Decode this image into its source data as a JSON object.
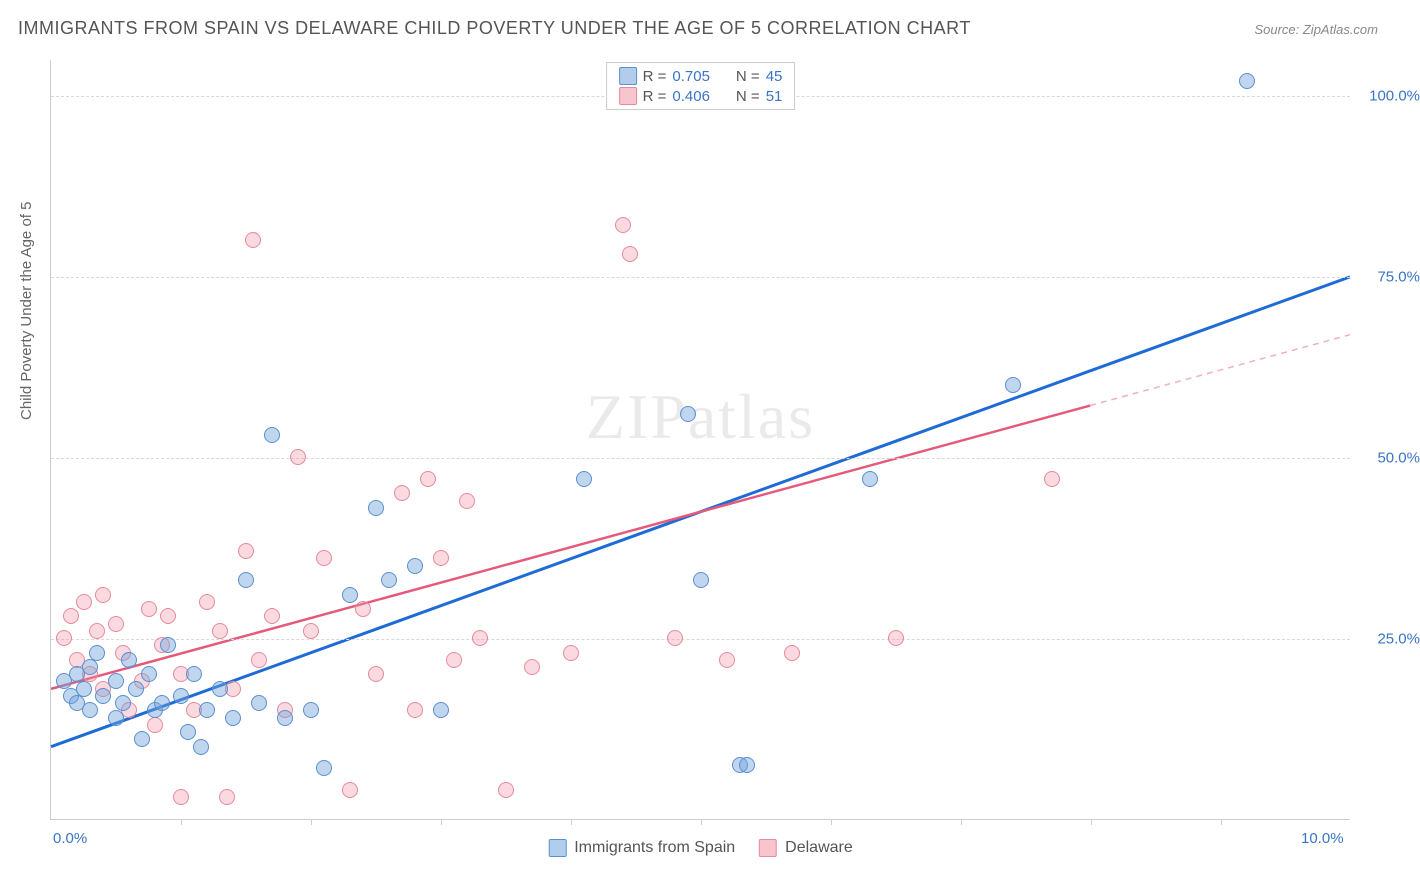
{
  "title": "IMMIGRANTS FROM SPAIN VS DELAWARE CHILD POVERTY UNDER THE AGE OF 5 CORRELATION CHART",
  "source_label": "Source: ",
  "source_value": "ZipAtlas.com",
  "watermark": "ZIPatlas",
  "y_axis_label": "Child Poverty Under the Age of 5",
  "chart": {
    "type": "scatter",
    "xlim": [
      0,
      10
    ],
    "ylim": [
      0,
      105
    ],
    "background_color": "#ffffff",
    "grid_color": "#d8d8d8",
    "y_ticks": [
      {
        "value": 25,
        "label": "25.0%"
      },
      {
        "value": 50,
        "label": "50.0%"
      },
      {
        "value": 75,
        "label": "75.0%"
      },
      {
        "value": 100,
        "label": "100.0%"
      }
    ],
    "x_ticks": [
      1,
      2,
      3,
      4,
      5,
      6,
      7,
      8,
      9
    ],
    "x_tick_labels": [
      {
        "value": 0,
        "label": "0.0%"
      },
      {
        "value": 10,
        "label": "10.0%"
      }
    ],
    "series": [
      {
        "name": "Immigrants from Spain",
        "color_fill": "rgba(115,163,219,0.45)",
        "color_stroke": "#5a8fd0",
        "line_color": "#1e6bd6",
        "line_width": 3,
        "marker_size": 16,
        "R": "0.705",
        "N": "45",
        "trend": {
          "x1": 0,
          "y1": 10,
          "x2": 10,
          "y2": 75
        },
        "points": [
          [
            0.1,
            19
          ],
          [
            0.15,
            17
          ],
          [
            0.2,
            20
          ],
          [
            0.2,
            16
          ],
          [
            0.25,
            18
          ],
          [
            0.3,
            15
          ],
          [
            0.3,
            21
          ],
          [
            0.35,
            23
          ],
          [
            0.4,
            17
          ],
          [
            0.5,
            14
          ],
          [
            0.5,
            19
          ],
          [
            0.55,
            16
          ],
          [
            0.6,
            22
          ],
          [
            0.65,
            18
          ],
          [
            0.7,
            11
          ],
          [
            0.75,
            20
          ],
          [
            0.8,
            15
          ],
          [
            0.85,
            16
          ],
          [
            0.9,
            24
          ],
          [
            1.0,
            17
          ],
          [
            1.05,
            12
          ],
          [
            1.1,
            20
          ],
          [
            1.15,
            10
          ],
          [
            1.2,
            15
          ],
          [
            1.3,
            18
          ],
          [
            1.4,
            14
          ],
          [
            1.5,
            33
          ],
          [
            1.6,
            16
          ],
          [
            1.7,
            53
          ],
          [
            1.8,
            14
          ],
          [
            2.0,
            15
          ],
          [
            2.1,
            7
          ],
          [
            2.3,
            31
          ],
          [
            2.5,
            43
          ],
          [
            2.6,
            33
          ],
          [
            2.8,
            35
          ],
          [
            3.0,
            15
          ],
          [
            4.1,
            47
          ],
          [
            4.9,
            56
          ],
          [
            5.0,
            33
          ],
          [
            5.3,
            7.5
          ],
          [
            5.35,
            7.5
          ],
          [
            6.3,
            47
          ],
          [
            7.4,
            60
          ],
          [
            9.2,
            102
          ]
        ]
      },
      {
        "name": "Delaware",
        "color_fill": "rgba(240,150,165,0.35)",
        "color_stroke": "#e68a9a",
        "line_color": "#e55a7a",
        "line_width": 2.5,
        "line_dash_after": 8,
        "marker_size": 16,
        "R": "0.406",
        "N": "51",
        "trend": {
          "x1": 0,
          "y1": 18,
          "x2": 10,
          "y2": 67
        },
        "points": [
          [
            0.1,
            25
          ],
          [
            0.15,
            28
          ],
          [
            0.2,
            22
          ],
          [
            0.25,
            30
          ],
          [
            0.3,
            20
          ],
          [
            0.35,
            26
          ],
          [
            0.4,
            18
          ],
          [
            0.4,
            31
          ],
          [
            0.5,
            27
          ],
          [
            0.55,
            23
          ],
          [
            0.6,
            15
          ],
          [
            0.7,
            19
          ],
          [
            0.75,
            29
          ],
          [
            0.8,
            13
          ],
          [
            0.85,
            24
          ],
          [
            0.9,
            28
          ],
          [
            1.0,
            20
          ],
          [
            1.0,
            3
          ],
          [
            1.1,
            15
          ],
          [
            1.2,
            30
          ],
          [
            1.3,
            26
          ],
          [
            1.35,
            3
          ],
          [
            1.4,
            18
          ],
          [
            1.5,
            37
          ],
          [
            1.55,
            80
          ],
          [
            1.6,
            22
          ],
          [
            1.7,
            28
          ],
          [
            1.8,
            15
          ],
          [
            1.9,
            50
          ],
          [
            2.0,
            26
          ],
          [
            2.1,
            36
          ],
          [
            2.3,
            4
          ],
          [
            2.4,
            29
          ],
          [
            2.5,
            20
          ],
          [
            2.7,
            45
          ],
          [
            2.8,
            15
          ],
          [
            2.9,
            47
          ],
          [
            3.0,
            36
          ],
          [
            3.1,
            22
          ],
          [
            3.2,
            44
          ],
          [
            3.3,
            25
          ],
          [
            3.5,
            4
          ],
          [
            3.7,
            21
          ],
          [
            4.0,
            23
          ],
          [
            4.4,
            82
          ],
          [
            4.45,
            78
          ],
          [
            4.8,
            25
          ],
          [
            5.2,
            22
          ],
          [
            5.7,
            23
          ],
          [
            6.5,
            25
          ],
          [
            7.7,
            47
          ]
        ]
      }
    ]
  },
  "legend_top": {
    "r_prefix": "R = ",
    "n_prefix": "N = "
  },
  "legend_bottom": {
    "items": [
      "Immigrants from Spain",
      "Delaware"
    ]
  }
}
